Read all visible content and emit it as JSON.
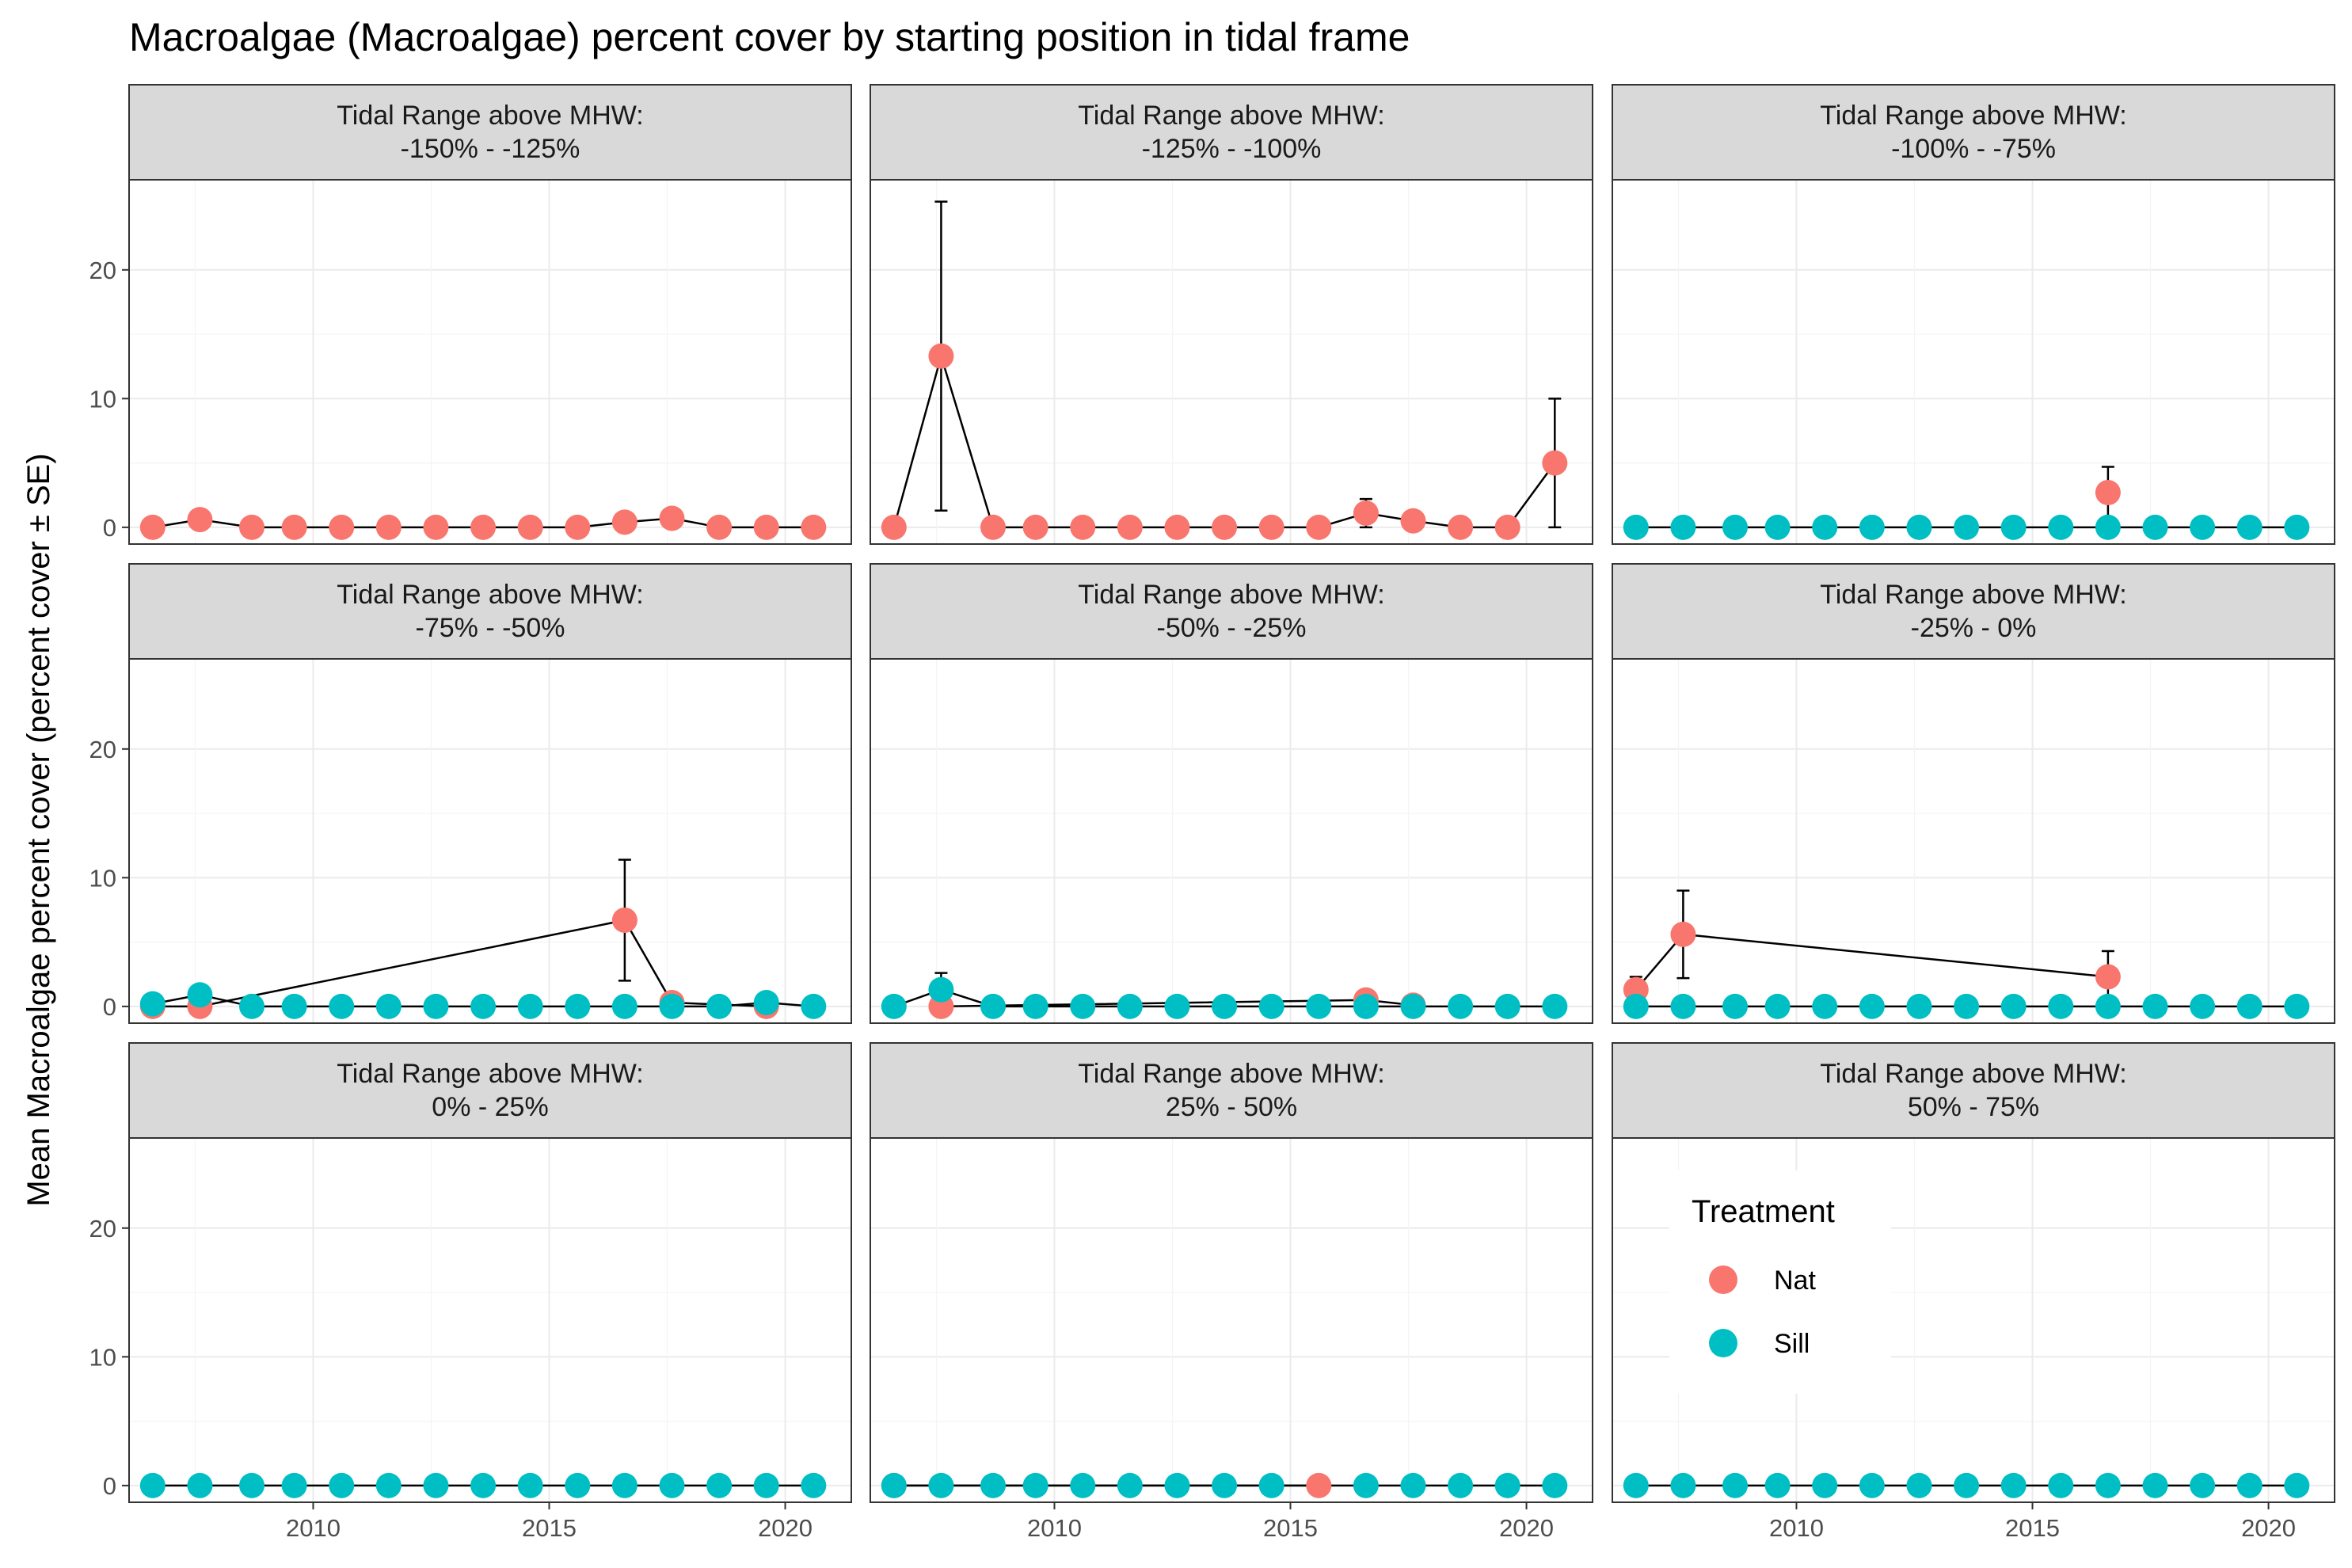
{
  "chart_data": {
    "type": "scatter",
    "title": "Macroalgae (Macroalgae) percent cover by starting position in tidal frame",
    "ylabel": "Mean Macroalgae percent cover (percent cover ± SE)",
    "xlabel": "",
    "x_ticks": [
      2010,
      2015,
      2020
    ],
    "y_ticks": [
      0,
      10,
      20
    ],
    "xlim": [
      2006.1,
      2021.4
    ],
    "ylim": [
      -1.3,
      27.0
    ],
    "grid": true,
    "connected_lines": true,
    "legend": {
      "title": "Treatment",
      "placement": "inside bottom-right panel",
      "entries": [
        {
          "name": "Nat",
          "color": "#F8766D"
        },
        {
          "name": "Sill",
          "color": "#00BFC4"
        }
      ]
    },
    "panels": [
      {
        "strip_line1": "Tidal Range above MHW:",
        "strip_line2": "-150%  -  -125%",
        "series": [
          {
            "name": "Nat",
            "points": [
              {
                "x": 2006.6,
                "y": 0
              },
              {
                "x": 2007.6,
                "y": 0.6
              },
              {
                "x": 2008.7,
                "y": 0
              },
              {
                "x": 2009.6,
                "y": 0
              },
              {
                "x": 2010.6,
                "y": 0
              },
              {
                "x": 2011.6,
                "y": 0
              },
              {
                "x": 2012.6,
                "y": 0
              },
              {
                "x": 2013.6,
                "y": 0
              },
              {
                "x": 2014.6,
                "y": 0
              },
              {
                "x": 2015.6,
                "y": 0
              },
              {
                "x": 2016.6,
                "y": 0.4
              },
              {
                "x": 2017.6,
                "y": 0.7
              },
              {
                "x": 2018.6,
                "y": 0
              },
              {
                "x": 2019.6,
                "y": 0
              },
              {
                "x": 2020.6,
                "y": 0
              }
            ]
          }
        ]
      },
      {
        "strip_line1": "Tidal Range above MHW:",
        "strip_line2": "-125%  -  -100%",
        "series": [
          {
            "name": "Nat",
            "points": [
              {
                "x": 2006.6,
                "y": 0
              },
              {
                "x": 2007.6,
                "y": 13.3,
                "se": 12.0
              },
              {
                "x": 2008.7,
                "y": 0
              },
              {
                "x": 2009.6,
                "y": 0
              },
              {
                "x": 2010.6,
                "y": 0
              },
              {
                "x": 2011.6,
                "y": 0
              },
              {
                "x": 2012.6,
                "y": 0
              },
              {
                "x": 2013.6,
                "y": 0
              },
              {
                "x": 2014.6,
                "y": 0
              },
              {
                "x": 2015.6,
                "y": 0
              },
              {
                "x": 2016.6,
                "y": 1.1,
                "se": 1.1
              },
              {
                "x": 2017.6,
                "y": 0.5
              },
              {
                "x": 2018.6,
                "y": 0
              },
              {
                "x": 2019.6,
                "y": 0
              },
              {
                "x": 2020.6,
                "y": 5.0,
                "se": 5.0
              }
            ]
          }
        ]
      },
      {
        "strip_line1": "Tidal Range above MHW:",
        "strip_line2": "-100%  -  -75%",
        "series": [
          {
            "name": "Nat",
            "points": [
              {
                "x": 2016.6,
                "y": 2.7,
                "se": 2.0
              }
            ]
          },
          {
            "name": "Sill",
            "points": [
              {
                "x": 2006.6,
                "y": 0
              },
              {
                "x": 2007.6,
                "y": 0
              },
              {
                "x": 2008.7,
                "y": 0
              },
              {
                "x": 2009.6,
                "y": 0
              },
              {
                "x": 2010.6,
                "y": 0
              },
              {
                "x": 2011.6,
                "y": 0
              },
              {
                "x": 2012.6,
                "y": 0
              },
              {
                "x": 2013.6,
                "y": 0
              },
              {
                "x": 2014.6,
                "y": 0
              },
              {
                "x": 2015.6,
                "y": 0
              },
              {
                "x": 2016.6,
                "y": 0
              },
              {
                "x": 2017.6,
                "y": 0
              },
              {
                "x": 2018.6,
                "y": 0
              },
              {
                "x": 2019.6,
                "y": 0
              },
              {
                "x": 2020.6,
                "y": 0
              }
            ]
          }
        ]
      },
      {
        "strip_line1": "Tidal Range above MHW:",
        "strip_line2": "-75%  -  -50%",
        "series": [
          {
            "name": "Nat",
            "points": [
              {
                "x": 2006.6,
                "y": 0
              },
              {
                "x": 2007.6,
                "y": 0
              },
              {
                "x": 2016.6,
                "y": 6.7,
                "se": 4.7
              },
              {
                "x": 2017.6,
                "y": 0.3
              },
              {
                "x": 2019.6,
                "y": 0
              }
            ]
          },
          {
            "name": "Sill",
            "points": [
              {
                "x": 2006.6,
                "y": 0.2
              },
              {
                "x": 2007.6,
                "y": 0.9
              },
              {
                "x": 2008.7,
                "y": 0
              },
              {
                "x": 2009.6,
                "y": 0
              },
              {
                "x": 2010.6,
                "y": 0
              },
              {
                "x": 2011.6,
                "y": 0
              },
              {
                "x": 2012.6,
                "y": 0
              },
              {
                "x": 2013.6,
                "y": 0
              },
              {
                "x": 2014.6,
                "y": 0
              },
              {
                "x": 2015.6,
                "y": 0
              },
              {
                "x": 2016.6,
                "y": 0
              },
              {
                "x": 2017.6,
                "y": 0
              },
              {
                "x": 2018.6,
                "y": 0
              },
              {
                "x": 2019.6,
                "y": 0.3
              },
              {
                "x": 2020.6,
                "y": 0
              }
            ]
          }
        ]
      },
      {
        "strip_line1": "Tidal Range above MHW:",
        "strip_line2": "-50%  -  -25%",
        "series": [
          {
            "name": "Nat",
            "points": [
              {
                "x": 2007.6,
                "y": 0
              },
              {
                "x": 2016.6,
                "y": 0.5
              },
              {
                "x": 2017.6,
                "y": 0.1
              }
            ]
          },
          {
            "name": "Sill",
            "points": [
              {
                "x": 2006.6,
                "y": 0
              },
              {
                "x": 2007.6,
                "y": 1.3,
                "se": 1.3
              },
              {
                "x": 2008.7,
                "y": 0
              },
              {
                "x": 2009.6,
                "y": 0
              },
              {
                "x": 2010.6,
                "y": 0
              },
              {
                "x": 2011.6,
                "y": 0
              },
              {
                "x": 2012.6,
                "y": 0
              },
              {
                "x": 2013.6,
                "y": 0
              },
              {
                "x": 2014.6,
                "y": 0
              },
              {
                "x": 2015.6,
                "y": 0
              },
              {
                "x": 2016.6,
                "y": 0
              },
              {
                "x": 2017.6,
                "y": 0
              },
              {
                "x": 2018.6,
                "y": 0
              },
              {
                "x": 2019.6,
                "y": 0
              },
              {
                "x": 2020.6,
                "y": 0
              }
            ]
          }
        ]
      },
      {
        "strip_line1": "Tidal Range above MHW:",
        "strip_line2": "-25%  -  0%",
        "series": [
          {
            "name": "Nat",
            "points": [
              {
                "x": 2006.6,
                "y": 1.3,
                "se": 1.0
              },
              {
                "x": 2007.6,
                "y": 5.6,
                "se": 3.4
              },
              {
                "x": 2016.6,
                "y": 2.3,
                "se": 2.0
              }
            ]
          },
          {
            "name": "Sill",
            "points": [
              {
                "x": 2006.6,
                "y": 0
              },
              {
                "x": 2007.6,
                "y": 0
              },
              {
                "x": 2008.7,
                "y": 0
              },
              {
                "x": 2009.6,
                "y": 0
              },
              {
                "x": 2010.6,
                "y": 0
              },
              {
                "x": 2011.6,
                "y": 0
              },
              {
                "x": 2012.6,
                "y": 0
              },
              {
                "x": 2013.6,
                "y": 0
              },
              {
                "x": 2014.6,
                "y": 0
              },
              {
                "x": 2015.6,
                "y": 0
              },
              {
                "x": 2016.6,
                "y": 0
              },
              {
                "x": 2017.6,
                "y": 0
              },
              {
                "x": 2018.6,
                "y": 0
              },
              {
                "x": 2019.6,
                "y": 0
              },
              {
                "x": 2020.6,
                "y": 0
              }
            ]
          }
        ]
      },
      {
        "strip_line1": "Tidal Range above MHW:",
        "strip_line2": "0%  -  25%",
        "series": [
          {
            "name": "Sill",
            "points": [
              {
                "x": 2006.6,
                "y": 0
              },
              {
                "x": 2007.6,
                "y": 0
              },
              {
                "x": 2008.7,
                "y": 0
              },
              {
                "x": 2009.6,
                "y": 0
              },
              {
                "x": 2010.6,
                "y": 0
              },
              {
                "x": 2011.6,
                "y": 0
              },
              {
                "x": 2012.6,
                "y": 0
              },
              {
                "x": 2013.6,
                "y": 0
              },
              {
                "x": 2014.6,
                "y": 0
              },
              {
                "x": 2015.6,
                "y": 0
              },
              {
                "x": 2016.6,
                "y": 0
              },
              {
                "x": 2017.6,
                "y": 0
              },
              {
                "x": 2018.6,
                "y": 0
              },
              {
                "x": 2019.6,
                "y": 0
              },
              {
                "x": 2020.6,
                "y": 0
              }
            ]
          }
        ]
      },
      {
        "strip_line1": "Tidal Range above MHW:",
        "strip_line2": "25%  -  50%",
        "series": [
          {
            "name": "Nat",
            "points": [
              {
                "x": 2006.6,
                "y": 0
              },
              {
                "x": 2015.6,
                "y": 0
              }
            ]
          },
          {
            "name": "Sill",
            "points": [
              {
                "x": 2006.6,
                "y": 0
              },
              {
                "x": 2007.6,
                "y": 0
              },
              {
                "x": 2008.7,
                "y": 0
              },
              {
                "x": 2009.6,
                "y": 0
              },
              {
                "x": 2010.6,
                "y": 0
              },
              {
                "x": 2011.6,
                "y": 0
              },
              {
                "x": 2012.6,
                "y": 0
              },
              {
                "x": 2013.6,
                "y": 0
              },
              {
                "x": 2014.6,
                "y": 0
              },
              {
                "x": 2016.6,
                "y": 0
              },
              {
                "x": 2017.6,
                "y": 0
              },
              {
                "x": 2018.6,
                "y": 0
              },
              {
                "x": 2019.6,
                "y": 0
              },
              {
                "x": 2020.6,
                "y": 0
              }
            ]
          }
        ]
      },
      {
        "strip_line1": "Tidal Range above MHW:",
        "strip_line2": "50%  -  75%",
        "series": [
          {
            "name": "Sill",
            "points": [
              {
                "x": 2006.6,
                "y": 0
              },
              {
                "x": 2007.6,
                "y": 0
              },
              {
                "x": 2008.7,
                "y": 0
              },
              {
                "x": 2009.6,
                "y": 0
              },
              {
                "x": 2010.6,
                "y": 0
              },
              {
                "x": 2011.6,
                "y": 0
              },
              {
                "x": 2012.6,
                "y": 0
              },
              {
                "x": 2013.6,
                "y": 0
              },
              {
                "x": 2014.6,
                "y": 0
              },
              {
                "x": 2015.6,
                "y": 0
              },
              {
                "x": 2016.6,
                "y": 0
              },
              {
                "x": 2017.6,
                "y": 0
              },
              {
                "x": 2018.6,
                "y": 0
              },
              {
                "x": 2019.6,
                "y": 0
              },
              {
                "x": 2020.6,
                "y": 0
              }
            ]
          }
        ]
      }
    ]
  }
}
